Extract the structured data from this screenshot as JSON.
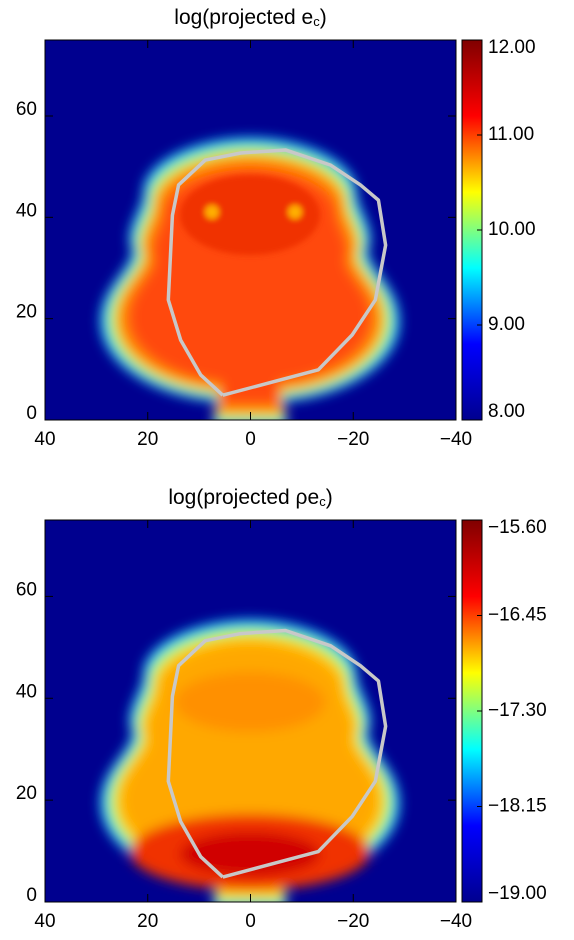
{
  "chart_data": [
    {
      "type": "heatmap",
      "title": [
        "log(projected e",
        "c",
        ")"
      ],
      "xlim": [
        40,
        -40
      ],
      "ylim": [
        0,
        75
      ],
      "xticks": [
        40,
        20,
        0,
        {
          "value": -20,
          "label": "−20"
        },
        {
          "value": -40,
          "label": "−40"
        }
      ],
      "yticks": [
        0,
        20,
        40,
        60
      ],
      "zlim": [
        8,
        12
      ],
      "zticks": [
        {
          "value": 12,
          "label": "12.00"
        },
        {
          "value": 11,
          "label": "11.00"
        },
        {
          "value": 10,
          "label": "10.00"
        },
        {
          "value": 9,
          "label": "9.00"
        },
        {
          "value": 8,
          "label": "8.00"
        }
      ],
      "colormap": [
        "#00008f",
        "#0000ff",
        "#00ffff",
        "#ffff00",
        "#ff0000",
        "#800000"
      ],
      "contour": {
        "color": "#c8c8c8",
        "x": [
          5.4,
          -13.2,
          -19.8,
          -24.3,
          -26.3,
          -24.9,
          -21.4,
          -15.6,
          -6.8,
          1.9,
          8.8,
          14.0,
          15.2,
          16.0,
          13.6,
          9.7,
          5.4
        ],
        "y": [
          4.9,
          9.9,
          16.8,
          23.7,
          34.5,
          43.4,
          46.4,
          50.3,
          53.3,
          52.7,
          51.3,
          46.4,
          40.4,
          23.7,
          15.8,
          8.9,
          4.9
        ]
      }
    },
    {
      "type": "heatmap",
      "title": [
        "log(projected ρe",
        "c",
        ")"
      ],
      "xlim": [
        40,
        -40
      ],
      "ylim": [
        0,
        75
      ],
      "xticks": [
        40,
        20,
        0,
        {
          "value": -20,
          "label": "−20"
        },
        {
          "value": -40,
          "label": "−40"
        }
      ],
      "yticks": [
        0,
        20,
        40,
        60
      ],
      "zlim": [
        -19,
        -15.6
      ],
      "zticks": [
        {
          "value": -15.6,
          "label": "−15.60"
        },
        {
          "value": -16.45,
          "label": "−16.45"
        },
        {
          "value": -17.3,
          "label": "−17.30"
        },
        {
          "value": -18.15,
          "label": "−18.15"
        },
        {
          "value": -19,
          "label": "−19.00"
        }
      ],
      "colormap": [
        "#00008f",
        "#0000ff",
        "#00ffff",
        "#ffff00",
        "#ff0000",
        "#800000"
      ],
      "contour": {
        "color": "#c8c8c8",
        "x": [
          5.4,
          -13.2,
          -19.8,
          -24.3,
          -26.3,
          -24.9,
          -21.4,
          -15.6,
          -6.8,
          1.9,
          8.8,
          14.0,
          15.2,
          16.0,
          13.6,
          9.7,
          5.4
        ],
        "y": [
          4.9,
          9.9,
          16.8,
          23.7,
          34.5,
          43.4,
          46.4,
          50.3,
          53.3,
          52.7,
          51.3,
          46.4,
          40.4,
          23.7,
          15.8,
          8.9,
          4.9
        ]
      }
    }
  ]
}
